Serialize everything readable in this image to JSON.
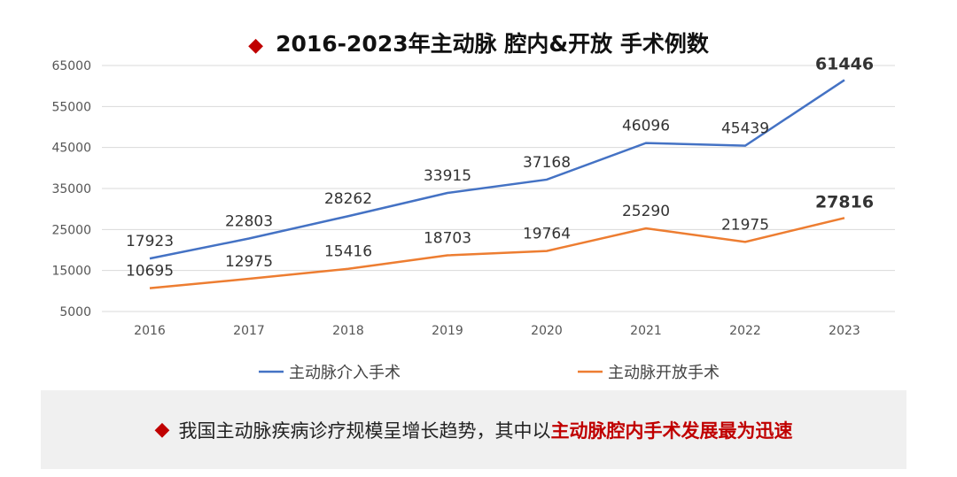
{
  "chart_data": {
    "type": "line",
    "title": "2016-2023年主动脉 腔内&开放 手术例数",
    "x": [
      "2016",
      "2017",
      "2018",
      "2019",
      "2020",
      "2021",
      "2022",
      "2023"
    ],
    "series": [
      {
        "name": "主动脉介入手术",
        "color": "#4472c4",
        "values": [
          17923,
          22803,
          28262,
          33915,
          37168,
          46096,
          45439,
          61446
        ]
      },
      {
        "name": "主动脉开放手术",
        "color": "#ed7d31",
        "values": [
          10695,
          12975,
          15416,
          18703,
          19764,
          25290,
          21975,
          27816
        ]
      }
    ],
    "yticks": [
      5000,
      15000,
      25000,
      35000,
      45000,
      55000,
      65000
    ],
    "ylim": [
      5000,
      65000
    ],
    "grid": true,
    "legend": "bottom"
  },
  "note": {
    "icon": "diamond-icon",
    "text": "我国主动脉疾病诊疗规模呈增长趋势，其中以",
    "highlight": "主动脉腔内手术发展最为迅速"
  }
}
